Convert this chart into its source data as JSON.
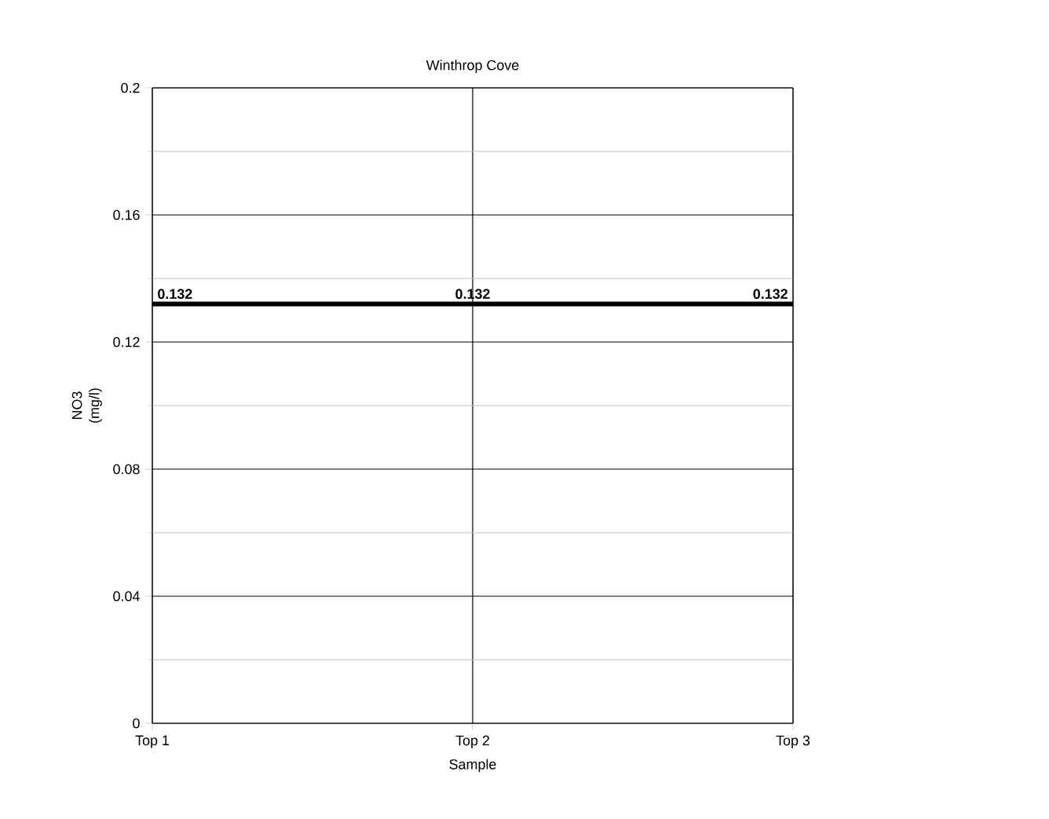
{
  "chart_data": {
    "type": "line",
    "title": "Winthrop Cove",
    "xlabel": "Sample",
    "ylabel": "NO3 (mg/l)",
    "categories": [
      "Top 1",
      "Top 2",
      "Top 3"
    ],
    "series": [
      {
        "color": "#000000",
        "values": [
          0.132,
          0.132,
          0.132
        ]
      }
    ],
    "ylim": [
      0,
      0.2
    ],
    "yticks": [
      0,
      0.04,
      0.08,
      0.12,
      0.16,
      0.2
    ],
    "grid": true,
    "data_labels": true,
    "marker": "none",
    "line_style": "solid"
  }
}
